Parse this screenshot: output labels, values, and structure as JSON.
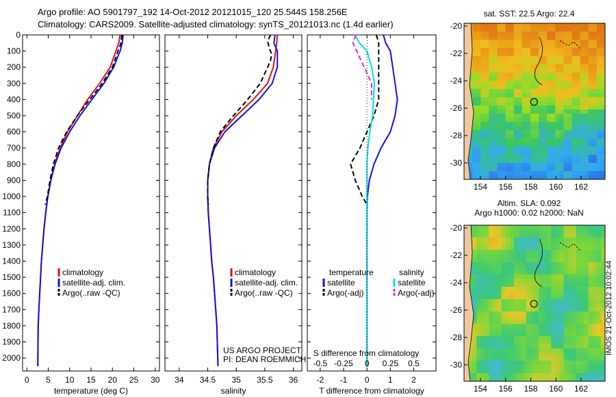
{
  "header": {
    "line1": "Argo profile: AO 5901797_192 14-Oct-2012 20121015_120 25.544S 158.256E",
    "line2": "Climatology: CARS2009. Satellite-adjusted climatology: synTS_20121013.nc (1.4d earlier)"
  },
  "colors": {
    "climatology": "#e01010",
    "satellite": "#1010e0",
    "argo": "#000000",
    "s_satellite": "#00e0e0",
    "s_argo": "#e020e0"
  },
  "chart_data": [
    {
      "id": "temperature",
      "type": "line",
      "xlabel": "temperature (deg C)",
      "ylabel": "",
      "xlim": [
        -1,
        31
      ],
      "ylim": [
        2080,
        0
      ],
      "xticks": [
        0,
        5,
        10,
        15,
        20,
        25,
        30
      ],
      "yticks": [
        0,
        100,
        200,
        300,
        400,
        500,
        600,
        700,
        800,
        900,
        1000,
        1100,
        1200,
        1300,
        1400,
        1500,
        1600,
        1700,
        1800,
        1900,
        2000
      ],
      "legend": [
        "climatology",
        "satellite-adj. clim.",
        "Argo(..raw -QC)"
      ],
      "series": [
        {
          "name": "climatology",
          "color_key": "climatology",
          "dash": false,
          "x": [
            21.8,
            21.5,
            20.8,
            19.5,
            17.0,
            14.2,
            11.8,
            9.5,
            7.8,
            6.5,
            5.6,
            4.9,
            4.4,
            4.0,
            3.7,
            3.4,
            3.2,
            3.0,
            2.8,
            2.65,
            2.55
          ],
          "y": [
            0,
            50,
            100,
            200,
            300,
            400,
            500,
            600,
            700,
            800,
            900,
            1000,
            1100,
            1200,
            1300,
            1400,
            1500,
            1600,
            1700,
            1800,
            2050
          ]
        },
        {
          "name": "satellite-adj. clim.",
          "color_key": "satellite",
          "dash": false,
          "x": [
            22.5,
            22.3,
            21.8,
            20.3,
            18.0,
            15.2,
            12.4,
            10.0,
            8.0,
            6.6,
            5.6,
            4.9,
            4.4,
            4.0,
            3.7,
            3.4,
            3.2,
            3.0,
            2.8,
            2.65,
            2.55
          ],
          "y": [
            0,
            50,
            100,
            200,
            300,
            400,
            500,
            600,
            700,
            800,
            900,
            1000,
            1100,
            1200,
            1300,
            1400,
            1500,
            1600,
            1700,
            1800,
            2050
          ]
        },
        {
          "name": "Argo(..raw -QC)",
          "color_key": "argo",
          "dash": true,
          "x": [
            22.2,
            22.0,
            21.3,
            20.0,
            17.6,
            14.7,
            11.8,
            9.3,
            7.4,
            6.2,
            5.4,
            4.8,
            4.3
          ],
          "y": [
            0,
            50,
            100,
            200,
            300,
            400,
            500,
            600,
            700,
            800,
            900,
            1000,
            1050
          ]
        }
      ]
    },
    {
      "id": "salinity",
      "type": "line",
      "xlabel": "salinity",
      "ylabel": "",
      "xlim": [
        33.75,
        36.15
      ],
      "ylim": [
        2080,
        0
      ],
      "xticks": [
        34,
        34.5,
        35,
        35.5,
        36
      ],
      "xticklabels": [
        "34",
        "34.5",
        "35",
        "35.5",
        "36"
      ],
      "legend": [
        "climatology",
        "satellite-adj. clim.",
        "Argo(..raw -QC)"
      ],
      "annotation": [
        "US ARGO PROJECT",
        "PI: DEAN ROEMMICH"
      ],
      "series": [
        {
          "name": "climatology",
          "color_key": "climatology",
          "dash": false,
          "x": [
            35.72,
            35.71,
            35.69,
            35.65,
            35.55,
            35.3,
            35.0,
            34.75,
            34.6,
            34.53,
            34.5,
            34.5,
            34.51,
            34.53,
            34.55,
            34.57,
            34.6,
            34.62,
            34.64,
            34.66,
            34.68
          ],
          "y": [
            0,
            50,
            100,
            200,
            300,
            400,
            500,
            600,
            700,
            800,
            900,
            1000,
            1100,
            1200,
            1300,
            1400,
            1500,
            1600,
            1700,
            1800,
            2050
          ]
        },
        {
          "name": "satellite-adj. clim.",
          "color_key": "satellite",
          "dash": false,
          "x": [
            35.68,
            35.66,
            35.72,
            35.72,
            35.63,
            35.4,
            35.1,
            34.8,
            34.62,
            34.53,
            34.5,
            34.5,
            34.51,
            34.53,
            34.55,
            34.57,
            34.6,
            34.62,
            34.64,
            34.66,
            34.68
          ],
          "y": [
            0,
            50,
            100,
            200,
            300,
            400,
            500,
            600,
            700,
            800,
            900,
            1000,
            1100,
            1200,
            1300,
            1400,
            1500,
            1600,
            1700,
            1800,
            2050
          ]
        },
        {
          "name": "Argo(..raw -QC)",
          "color_key": "argo",
          "dash": true,
          "x": [
            35.6,
            35.55,
            35.58,
            35.62,
            35.6,
            35.55,
            35.42,
            35.2,
            34.95,
            34.72,
            34.6,
            34.53,
            34.5,
            34.5,
            34.51
          ],
          "y": [
            0,
            40,
            80,
            120,
            160,
            200,
            300,
            400,
            500,
            600,
            700,
            800,
            900,
            1000,
            1050
          ]
        }
      ]
    },
    {
      "id": "differences",
      "type": "line",
      "xlabel": "T difference from climatology",
      "xlabel2": "S difference from climatology",
      "xlim": [
        -2.55,
        2.95
      ],
      "ylim": [
        2080,
        0
      ],
      "xticks": [
        -2,
        -1,
        0,
        1,
        2
      ],
      "xticks_s": [
        -0.5,
        -0.25,
        0,
        0.25,
        0.5
      ],
      "xticklabels_s": [
        "-0.5",
        "-0.25",
        "0",
        "0.25",
        "0.5"
      ],
      "s_scale": 4,
      "legend_temperature_title": "temperature",
      "legend_salinity_title": "salinity",
      "legend_temperature": [
        "satellite",
        "Argo(-adj)"
      ],
      "legend_salinity": [
        "satellite",
        "Argo(-adj)"
      ],
      "series": [
        {
          "name": "T satellite",
          "color_key": "satellite",
          "dash": false,
          "x": [
            0.7,
            0.8,
            1.0,
            1.1,
            1.2,
            1.3,
            1.2,
            1.0,
            0.6,
            0.3,
            0.1,
            0.02,
            0.0,
            0.0,
            0.0,
            0.0,
            0.0,
            0.0,
            0.0,
            0.0,
            0.0
          ],
          "y": [
            0,
            50,
            100,
            200,
            300,
            400,
            500,
            600,
            700,
            800,
            900,
            1000,
            1100,
            1200,
            1300,
            1400,
            1500,
            1600,
            1700,
            1800,
            2050
          ]
        },
        {
          "name": "T Argo(-adj)",
          "color_key": "argo",
          "dash": true,
          "x": [
            0.4,
            0.5,
            0.5,
            0.5,
            0.5,
            0.5,
            0.3,
            0.0,
            -0.3,
            -0.7,
            -0.5,
            -0.2,
            0.0
          ],
          "y": [
            0,
            50,
            100,
            200,
            300,
            400,
            500,
            600,
            700,
            800,
            900,
            1000,
            1050
          ]
        },
        {
          "name": "S satellite",
          "color_key": "s_satellite",
          "dash": false,
          "x": [
            -0.13,
            -0.08,
            0.0,
            0.05,
            0.08,
            0.07,
            0.06,
            0.03,
            0.01,
            0.0,
            0.0,
            0.0,
            0.0,
            0.0,
            0.0,
            0.0,
            0.0,
            0.0,
            0.0,
            0.0,
            0.0
          ],
          "y": [
            0,
            50,
            100,
            200,
            300,
            400,
            500,
            600,
            700,
            800,
            900,
            1000,
            1100,
            1200,
            1300,
            1400,
            1500,
            1600,
            1700,
            1800,
            2050
          ]
        },
        {
          "name": "S Argo(-adj)",
          "color_key": "s_argo",
          "dash": true,
          "x": [
            -0.12,
            -0.15,
            -0.11,
            -0.03,
            0.05,
            0.05
          ],
          "y": [
            0,
            50,
            100,
            200,
            300,
            400
          ]
        }
      ]
    }
  ],
  "maps": [
    {
      "id": "sst-map",
      "title": "sat. SST: 22.5  Argo: 22.4",
      "subtitle": "",
      "xticks": [
        154,
        156,
        158,
        160,
        162
      ],
      "yticks": [
        -20,
        -22,
        -24,
        -26,
        -28,
        -30
      ],
      "xlim": [
        152.7,
        163.9
      ],
      "ylim": [
        -31.2,
        -19.8
      ],
      "float_lon": 158.256,
      "float_lat": -25.544
    },
    {
      "id": "sla-map",
      "title": "Altim. SLA: 0.092",
      "subtitle": "Argo h1000: 0.02 h2000: NaN",
      "xticks": [
        154,
        156,
        158,
        160,
        162
      ],
      "yticks": [
        -20,
        -22,
        -24,
        -26,
        -28,
        -30
      ],
      "xlim": [
        152.7,
        163.9
      ],
      "ylim": [
        -31.2,
        -19.8
      ],
      "float_lon": 158.256,
      "float_lat": -25.544
    }
  ],
  "footer": "IMOS 21-Oct-2012 10:02:44"
}
